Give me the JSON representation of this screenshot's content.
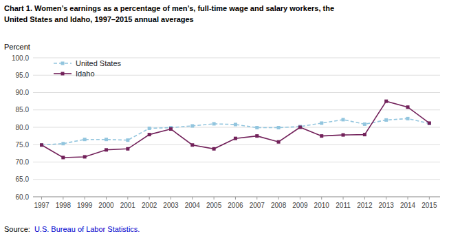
{
  "chart_data": {
    "type": "line",
    "title": "Chart 1. Women’s earnings as a percentage of men’s, full-time wage and salary workers, the",
    "subtitle": "United States and Idaho, 1997–2015  annual averages",
    "y_label": "Percent",
    "x": [
      1997,
      1998,
      1999,
      2000,
      2001,
      2002,
      2003,
      2004,
      2005,
      2006,
      2007,
      2008,
      2009,
      2010,
      2011,
      2012,
      2013,
      2014,
      2015
    ],
    "series": [
      {
        "name": "United States",
        "color": "#92C5DE",
        "line_style": "dashed",
        "marker": "square",
        "values": [
          74.9,
          75.3,
          76.5,
          76.5,
          76.3,
          79.7,
          79.9,
          80.4,
          81.0,
          80.8,
          79.9,
          79.9,
          80.2,
          81.2,
          82.2,
          80.9,
          82.1,
          82.5,
          81.1
        ]
      },
      {
        "name": "Idaho",
        "color": "#72215A",
        "line_style": "solid",
        "marker": "square",
        "values": [
          74.9,
          71.3,
          71.5,
          73.5,
          73.8,
          77.9,
          79.5,
          74.9,
          73.8,
          76.8,
          77.5,
          75.8,
          80.0,
          77.5,
          77.8,
          77.9,
          87.5,
          85.8,
          81.2
        ]
      }
    ],
    "xlim": [
      1996.6,
      2015.5
    ],
    "xticks": [
      1997,
      1998,
      1999,
      2000,
      2001,
      2002,
      2003,
      2004,
      2005,
      2006,
      2007,
      2008,
      2009,
      2010,
      2011,
      2012,
      2013,
      2014,
      2015
    ],
    "ylim": [
      60.0,
      100.0
    ],
    "yticks": [
      {
        "value": 60,
        "label": "60.0"
      },
      {
        "value": 65,
        "label": "65.0"
      },
      {
        "value": 70,
        "label": "70.0"
      },
      {
        "value": 75,
        "label": "75.0"
      },
      {
        "value": 80,
        "label": "80.0"
      },
      {
        "value": 85,
        "label": "85.0"
      },
      {
        "value": 90,
        "label": "90.0"
      },
      {
        "value": 95,
        "label": "95.0"
      },
      {
        "value": 100,
        "label": "100.0"
      }
    ],
    "grid": true,
    "legend": "upper left",
    "annotations": [
      "Source:",
      "U.S. Bureau of Labor Statistics."
    ]
  }
}
